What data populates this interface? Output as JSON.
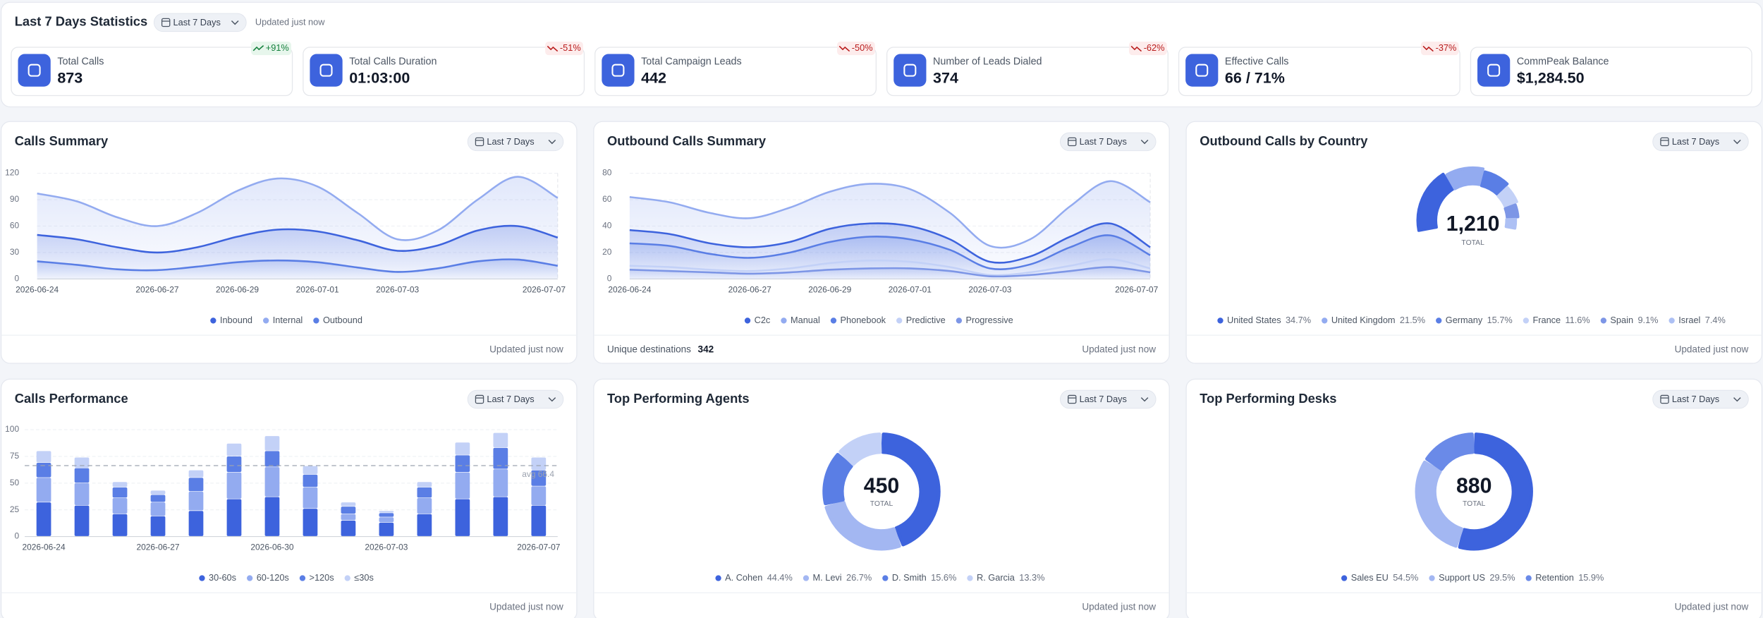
{
  "header": {
    "title": "Last 7 Days Statistics",
    "filter": "Last 7 Days",
    "updated": "Updated just now"
  },
  "stats": [
    {
      "label": "Total Calls",
      "value": "873",
      "change": "+91%",
      "trend": "up"
    },
    {
      "label": "Total Calls Duration",
      "value": "01:03:00",
      "change": "-51%",
      "trend": "down"
    },
    {
      "label": "Total Campaign Leads",
      "value": "442",
      "change": "-50%",
      "trend": "down"
    },
    {
      "label": "Number of Leads Dialed",
      "value": "374",
      "change": "-62%",
      "trend": "down"
    },
    {
      "label": "Effective Calls",
      "value": "66 / 71%",
      "change": "-37%",
      "trend": "down"
    },
    {
      "label": "CommPeak Balance",
      "value": "$1,284.50"
    }
  ],
  "chart_data": [
    {
      "type": "area",
      "title": "Calls Summary",
      "filter": "Last 7 Days",
      "footer": "Updated just now",
      "categories": [
        "2026-06-24",
        null,
        null,
        "2026-06-27",
        null,
        "2026-06-29",
        null,
        "2026-07-01",
        null,
        "2026-07-03",
        null,
        null,
        null,
        "2026-07-07"
      ],
      "series": [
        {
          "name": "Inbound",
          "color": "#3d63dd",
          "values": [
            50,
            45,
            36,
            30,
            36,
            48,
            56,
            54,
            44,
            32,
            38,
            55,
            60,
            47
          ]
        },
        {
          "name": "Internal",
          "color": "#93abf0",
          "values": [
            97,
            88,
            70,
            60,
            75,
            100,
            114,
            105,
            75,
            45,
            55,
            90,
            116,
            92
          ]
        },
        {
          "name": "Outbound",
          "color": "#5a7ee5",
          "values": [
            20,
            16,
            11,
            10,
            14,
            19,
            21,
            19,
            13,
            8,
            12,
            20,
            22,
            15
          ]
        }
      ],
      "ylim": [
        0,
        120
      ],
      "yticks": [
        0,
        30,
        60,
        90,
        120
      ],
      "grid": true
    },
    {
      "type": "area",
      "title": "Outbound Calls Summary",
      "filter": "Last 7 Days",
      "footer": "Updated just now",
      "note": {
        "label": "Unique destinations",
        "value": "342"
      },
      "categories": [
        "2026-06-24",
        null,
        null,
        "2026-06-27",
        null,
        "2026-06-29",
        null,
        "2026-07-01",
        null,
        "2026-07-03",
        null,
        null,
        null,
        "2026-07-07"
      ],
      "series": [
        {
          "name": "C2c",
          "color": "#3d63dd",
          "values": [
            37,
            34,
            27,
            24,
            28,
            38,
            42,
            40,
            30,
            13,
            17,
            32,
            42,
            24
          ]
        },
        {
          "name": "Manual",
          "color": "#93abf0",
          "values": [
            62,
            58,
            50,
            46,
            54,
            66,
            72,
            68,
            50,
            25,
            30,
            55,
            74,
            58
          ]
        },
        {
          "name": "Phonebook",
          "color": "#5a7ee5",
          "values": [
            27,
            25,
            19,
            16,
            20,
            28,
            32,
            30,
            22,
            8,
            11,
            24,
            33,
            18
          ]
        },
        {
          "name": "Predictive",
          "color": "#c3d1f7",
          "values": [
            10,
            9,
            7,
            6,
            8,
            12,
            14,
            13,
            9,
            3,
            5,
            10,
            15,
            8
          ]
        },
        {
          "name": "Progressive",
          "color": "#7d96e6",
          "values": [
            7,
            6,
            5,
            4,
            5,
            7,
            8,
            8,
            6,
            2,
            3,
            6,
            9,
            5
          ]
        }
      ],
      "ylim": [
        0,
        80
      ],
      "yticks": [
        0,
        20,
        40,
        60,
        80
      ],
      "grid": true
    },
    {
      "type": "gauge",
      "title": "Outbound Calls by Country",
      "filter": "Last 7 Days",
      "footer": "Updated just now",
      "total": "1,210",
      "total_label": "TOTAL",
      "labels": [
        "United States",
        "United Kingdom",
        "Germany",
        "France",
        "Spain",
        "Israel"
      ],
      "values": [
        34.7,
        21.5,
        15.7,
        11.6,
        9.1,
        7.4
      ],
      "value_labels": [
        "34.7%",
        "21.5%",
        "15.7%",
        "11.6%",
        "9.1%",
        "7.4%"
      ],
      "colors": [
        "#3d63dd",
        "#93abf0",
        "#5a7ee5",
        "#c3d1f7",
        "#7d96e6",
        "#adc0f4"
      ]
    },
    {
      "type": "bar",
      "title": "Calls Performance",
      "filter": "Last 7 Days",
      "footer": "Updated just now",
      "stacked": true,
      "categories": [
        "2026-06-24",
        null,
        null,
        "2026-06-27",
        null,
        null,
        "2026-06-30",
        null,
        null,
        "2026-07-03",
        null,
        null,
        null,
        "2026-07-07"
      ],
      "series": [
        {
          "name": "30-60s",
          "color": "#3d63dd",
          "values": [
            32,
            29,
            21,
            19,
            24,
            35,
            37,
            26,
            15,
            13,
            21,
            35,
            37,
            29
          ]
        },
        {
          "name": "60-120s",
          "color": "#93abf0",
          "values": [
            23,
            21,
            15,
            13,
            18,
            25,
            28,
            20,
            6,
            5,
            15,
            25,
            26,
            18
          ]
        },
        {
          "name": ">120s",
          "color": "#5a7ee5",
          "values": [
            14,
            14,
            10,
            7,
            13,
            15,
            15,
            12,
            7,
            4,
            10,
            16,
            20,
            15
          ]
        },
        {
          "name": "≤30s",
          "color": "#c3d1f7",
          "values": [
            11,
            10,
            5,
            4,
            7,
            12,
            14,
            8,
            4,
            2,
            5,
            12,
            14,
            12
          ]
        }
      ],
      "average": 66.4,
      "average_label": "avg 66.4",
      "ylim": [
        0,
        100
      ],
      "yticks": [
        0,
        25,
        50,
        75,
        100
      ],
      "grid": true
    },
    {
      "type": "donut",
      "title": "Top Performing Agents",
      "filter": "Last 7 Days",
      "footer": "Updated just now",
      "total": 450,
      "total_label": "TOTAL",
      "labels": [
        "A. Cohen",
        "M. Levi",
        "D. Smith",
        "R. Garcia"
      ],
      "values": [
        44.4,
        26.7,
        15.6,
        13.3
      ],
      "value_labels": [
        "44.4%",
        "26.7%",
        "15.6%",
        "13.3%"
      ],
      "colors": [
        "#3d63dd",
        "#a3b7f2",
        "#5a7ee5",
        "#c3d1f7"
      ]
    },
    {
      "type": "donut",
      "title": "Top Performing Desks",
      "filter": "Last 7 Days",
      "footer": "Updated just now",
      "total": 880,
      "total_label": "TOTAL",
      "labels": [
        "Sales EU",
        "Support US",
        "Retention"
      ],
      "values": [
        54.5,
        29.5,
        15.9
      ],
      "value_labels": [
        "54.5%",
        "29.5%",
        "15.9%"
      ],
      "colors": [
        "#3d63dd",
        "#a3b7f2",
        "#6a8ae8"
      ]
    }
  ]
}
